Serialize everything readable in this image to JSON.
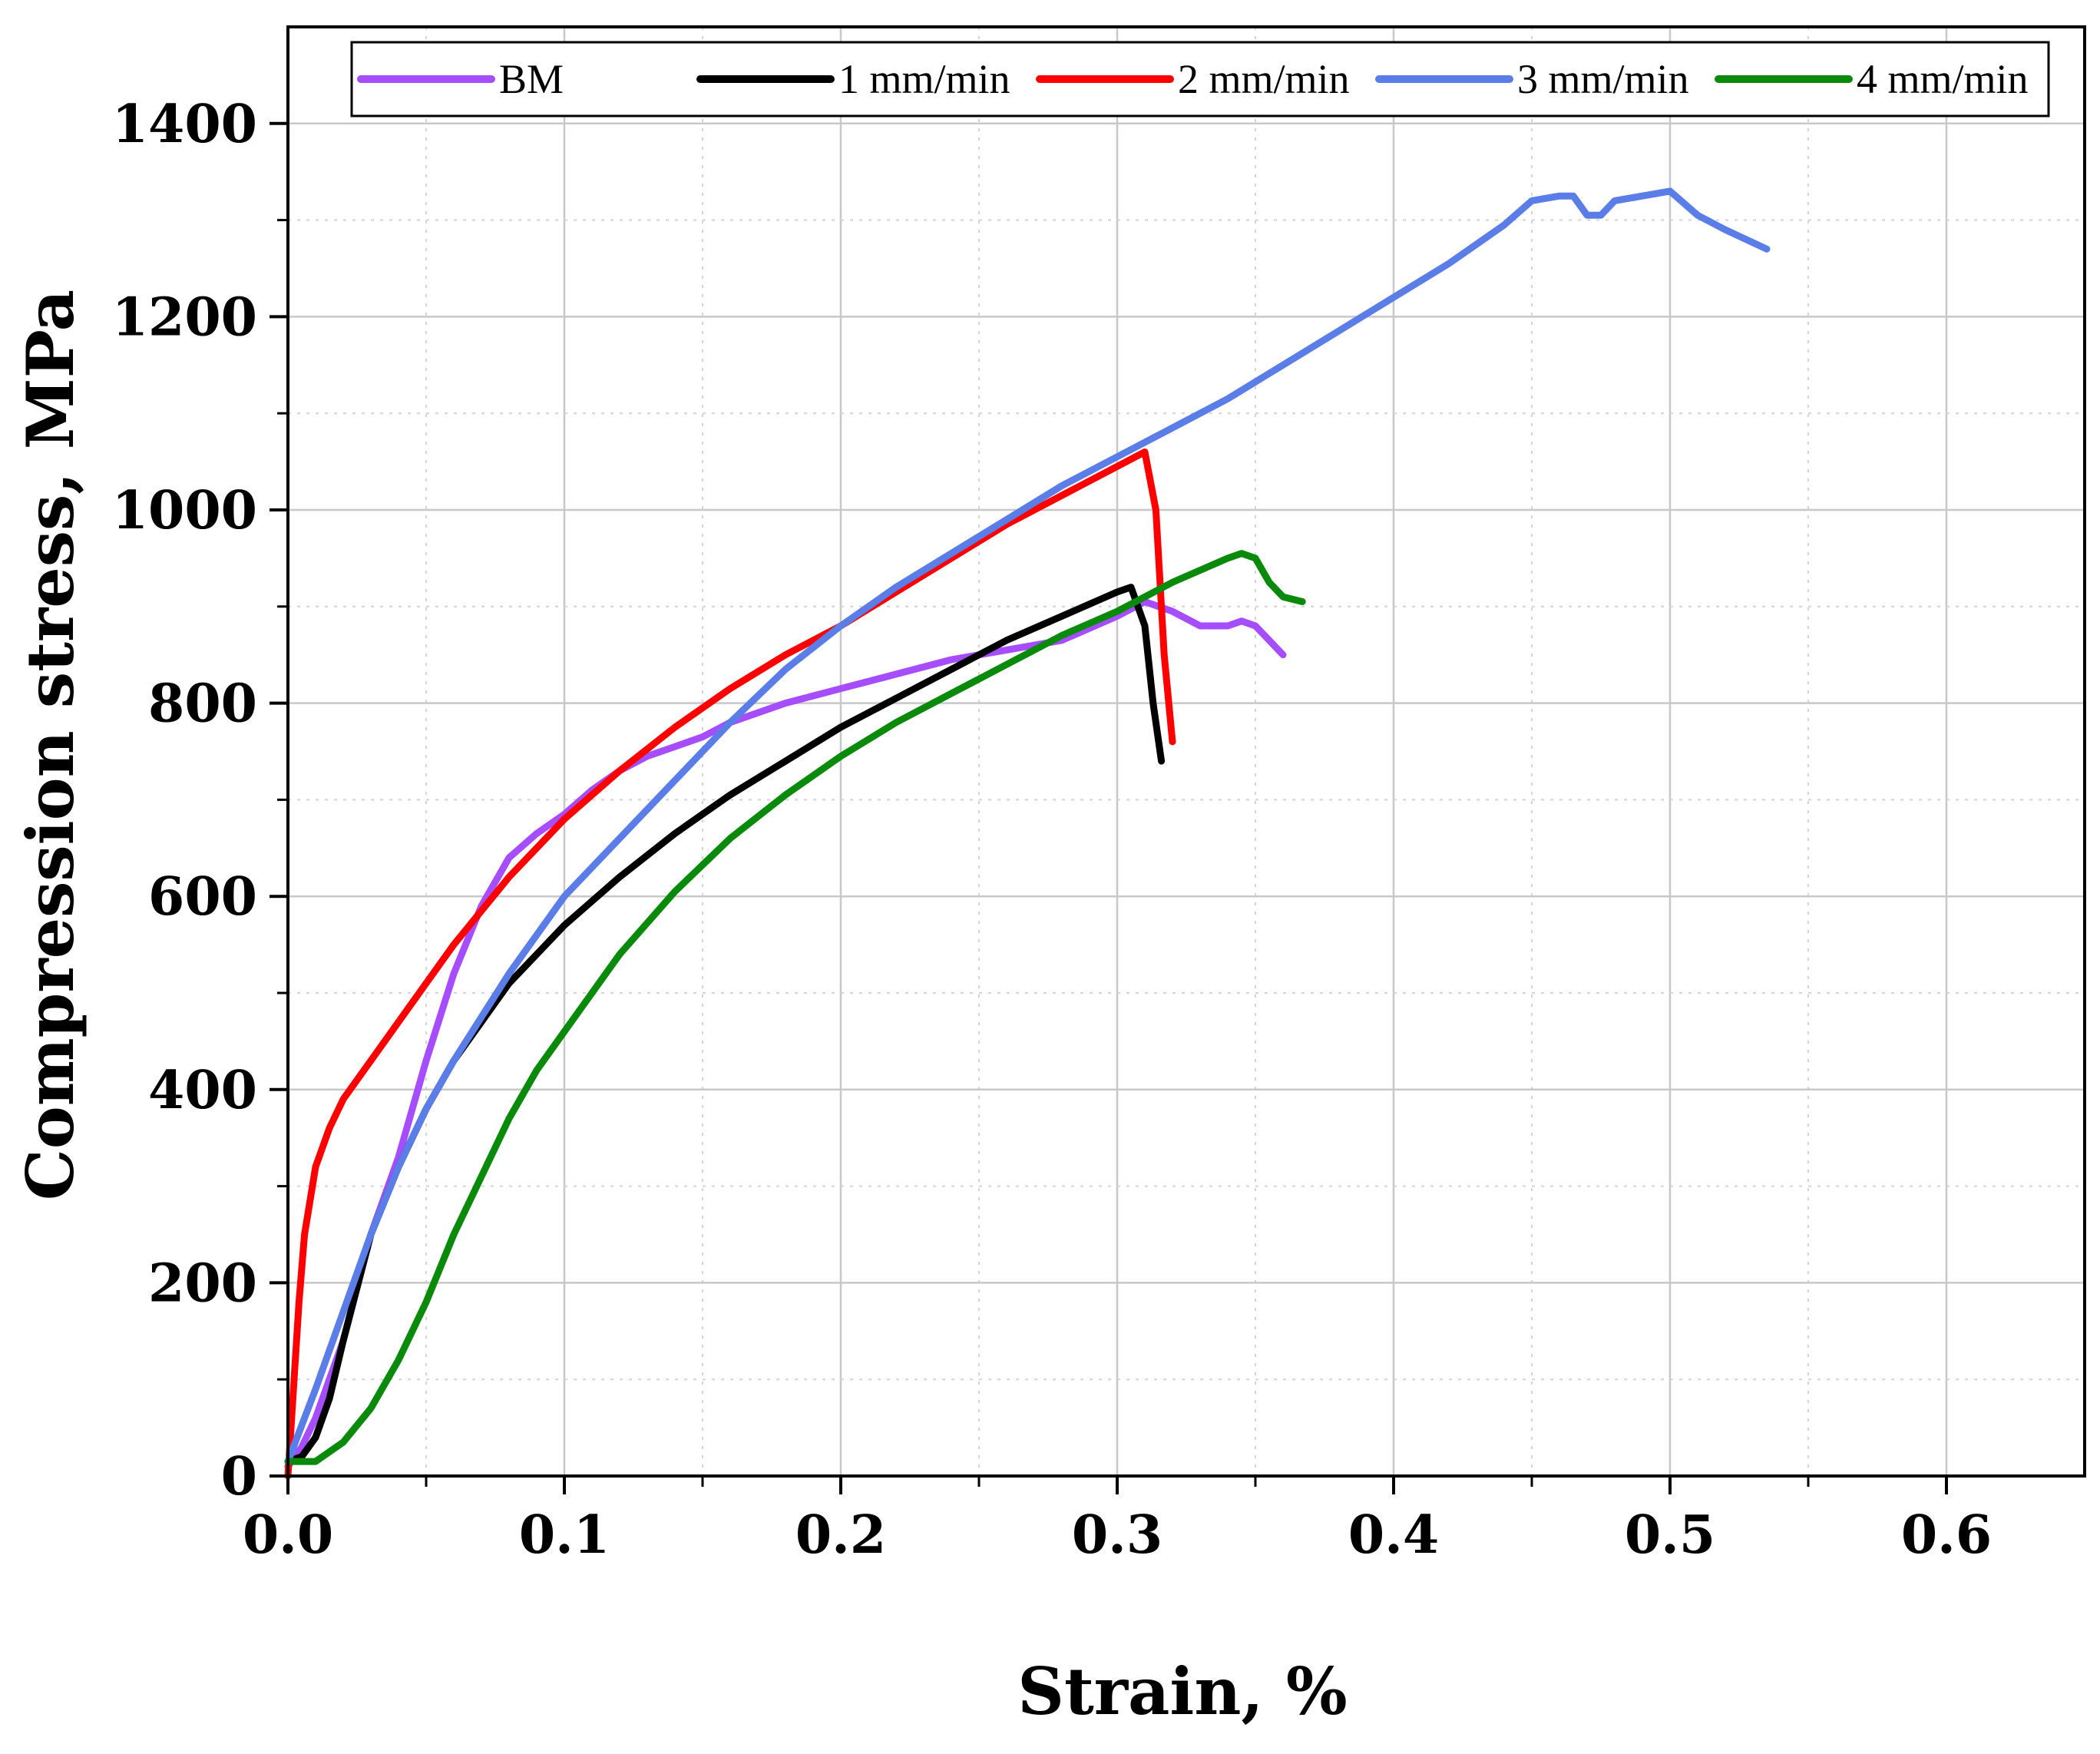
{
  "chart_data": {
    "type": "line",
    "title": "",
    "xlabel": "Strain, %",
    "ylabel": "Compression stress, MPa",
    "xlim": [
      0,
      0.65
    ],
    "ylim": [
      0,
      1500
    ],
    "xticks": [
      0.0,
      0.1,
      0.2,
      0.3,
      0.4,
      0.5,
      0.6
    ],
    "xtick_labels": [
      "0.0",
      "0.1",
      "0.2",
      "0.3",
      "0.4",
      "0.5",
      "0.6"
    ],
    "yticks": [
      0,
      200,
      400,
      600,
      800,
      1000,
      1200,
      1400
    ],
    "ytick_labels": [
      "0",
      "200",
      "400",
      "600",
      "800",
      "1000",
      "1200",
      "1400"
    ],
    "grid": true,
    "legend_position": "top",
    "series": [
      {
        "name": "BM",
        "color": "#a64dff",
        "x": [
          0,
          0.005,
          0.01,
          0.02,
          0.03,
          0.04,
          0.05,
          0.06,
          0.07,
          0.08,
          0.09,
          0.1,
          0.11,
          0.12,
          0.13,
          0.14,
          0.15,
          0.16,
          0.18,
          0.2,
          0.22,
          0.24,
          0.26,
          0.28,
          0.3,
          0.31,
          0.32,
          0.33,
          0.34,
          0.345,
          0.35,
          0.355,
          0.36
        ],
        "y": [
          10,
          30,
          60,
          140,
          250,
          330,
          430,
          520,
          590,
          640,
          665,
          685,
          710,
          730,
          745,
          755,
          765,
          780,
          800,
          815,
          830,
          845,
          855,
          865,
          890,
          905,
          895,
          880,
          880,
          885,
          880,
          865,
          850
        ]
      },
      {
        "name": "1 mm/min",
        "color": "#000000",
        "x": [
          0,
          0.005,
          0.01,
          0.015,
          0.02,
          0.03,
          0.04,
          0.05,
          0.06,
          0.07,
          0.08,
          0.09,
          0.1,
          0.12,
          0.14,
          0.16,
          0.18,
          0.2,
          0.22,
          0.24,
          0.26,
          0.28,
          0.3,
          0.305,
          0.31,
          0.313,
          0.316
        ],
        "y": [
          15,
          20,
          40,
          80,
          140,
          250,
          320,
          380,
          430,
          470,
          510,
          540,
          570,
          620,
          665,
          705,
          740,
          775,
          805,
          835,
          865,
          890,
          915,
          920,
          880,
          800,
          740
        ]
      },
      {
        "name": "2 mm/min",
        "color": "#ff0000",
        "x": [
          0,
          0.002,
          0.004,
          0.006,
          0.01,
          0.015,
          0.02,
          0.03,
          0.04,
          0.05,
          0.06,
          0.08,
          0.1,
          0.12,
          0.14,
          0.16,
          0.18,
          0.2,
          0.22,
          0.24,
          0.26,
          0.28,
          0.3,
          0.31,
          0.314,
          0.317,
          0.32
        ],
        "y": [
          0,
          90,
          180,
          250,
          320,
          360,
          390,
          430,
          470,
          510,
          550,
          620,
          680,
          730,
          775,
          815,
          850,
          880,
          915,
          950,
          985,
          1015,
          1045,
          1060,
          1000,
          850,
          760
        ]
      },
      {
        "name": "3 mm/min",
        "color": "#5a7de8",
        "x": [
          0,
          0.01,
          0.02,
          0.03,
          0.04,
          0.05,
          0.06,
          0.08,
          0.1,
          0.12,
          0.14,
          0.16,
          0.18,
          0.2,
          0.22,
          0.24,
          0.26,
          0.28,
          0.3,
          0.32,
          0.34,
          0.36,
          0.38,
          0.4,
          0.42,
          0.44,
          0.45,
          0.46,
          0.465,
          0.47,
          0.475,
          0.48,
          0.49,
          0.5,
          0.51,
          0.52,
          0.535
        ],
        "y": [
          15,
          90,
          170,
          250,
          320,
          380,
          430,
          520,
          600,
          660,
          720,
          780,
          835,
          880,
          920,
          955,
          990,
          1025,
          1055,
          1085,
          1115,
          1150,
          1185,
          1220,
          1255,
          1295,
          1320,
          1325,
          1325,
          1305,
          1305,
          1320,
          1325,
          1330,
          1305,
          1290,
          1270
        ]
      },
      {
        "name": "4 mm/min",
        "color": "#0a8a0a",
        "x": [
          0,
          0.01,
          0.02,
          0.03,
          0.04,
          0.05,
          0.06,
          0.07,
          0.08,
          0.09,
          0.1,
          0.12,
          0.14,
          0.16,
          0.18,
          0.2,
          0.22,
          0.24,
          0.26,
          0.28,
          0.3,
          0.32,
          0.34,
          0.345,
          0.35,
          0.355,
          0.36,
          0.367
        ],
        "y": [
          15,
          15,
          35,
          70,
          120,
          180,
          250,
          310,
          370,
          420,
          460,
          540,
          605,
          660,
          705,
          745,
          780,
          810,
          840,
          870,
          895,
          925,
          950,
          955,
          950,
          925,
          910,
          905
        ]
      }
    ]
  }
}
